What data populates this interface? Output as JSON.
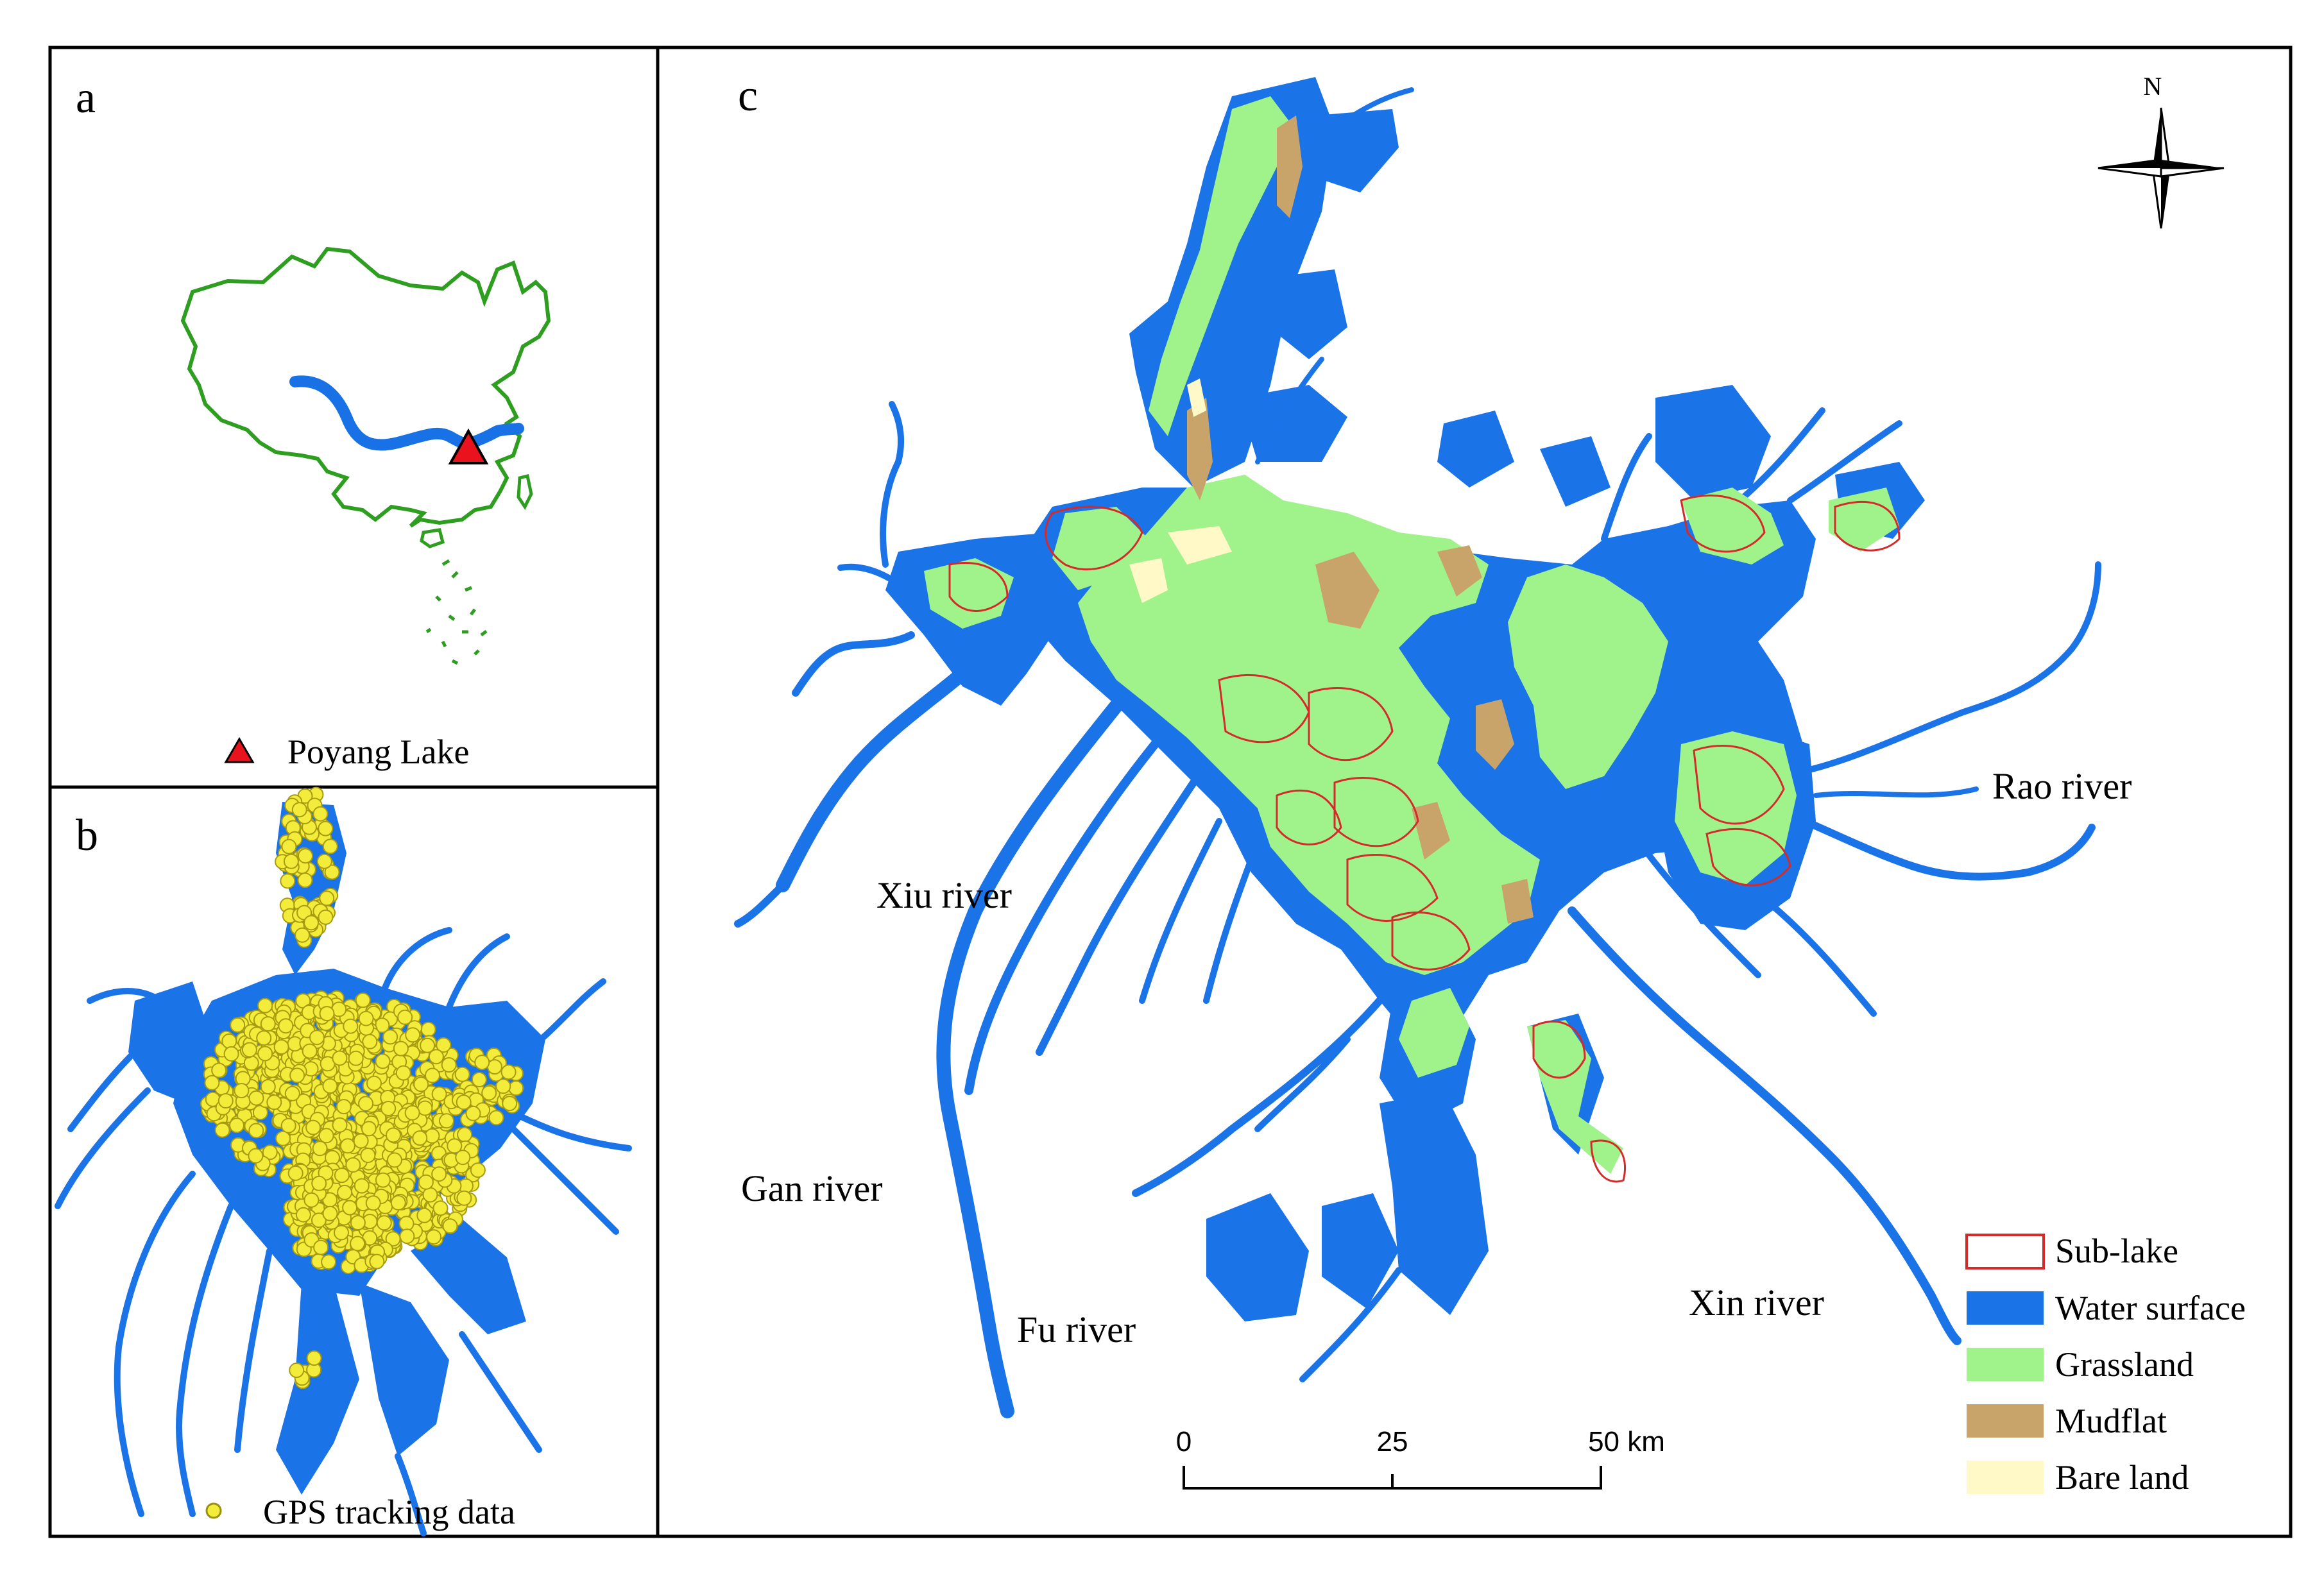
{
  "panels": {
    "a": {
      "letter": "a",
      "legend_label": "Poyang Lake",
      "marker_color": "#e8131d",
      "outline_color": "#2e9e20",
      "river_color": "#1872e6"
    },
    "b": {
      "letter": "b",
      "legend_label": "GPS tracking data",
      "point_color": "#f4ec3a"
    },
    "c": {
      "letter": "c",
      "north_label": "N",
      "river_labels": {
        "xiu": "Xiu river",
        "rao": "Rao river",
        "gan": "Gan river",
        "fu": "Fu river",
        "xin": "Xin river"
      },
      "scale_bar": {
        "ticks": [
          "0",
          "25",
          "50 km"
        ]
      },
      "legend": [
        {
          "label": "Sub-lake",
          "type": "outline",
          "color": "#d42a2a"
        },
        {
          "label": "Water surface",
          "type": "fill",
          "color": "#1b73e8"
        },
        {
          "label": "Grassland",
          "type": "fill",
          "color": "#a0f28a"
        },
        {
          "label": "Mudflat",
          "type": "fill",
          "color": "#c9a46a"
        },
        {
          "label": "Bare land",
          "type": "fill",
          "color": "#fff9c8"
        }
      ]
    }
  },
  "colors": {
    "water": "#1b73e8",
    "grass": "#a0f28a",
    "mud": "#c9a46a",
    "bare": "#fff9c8",
    "sublake": "#d42a2a",
    "gps": "#f4ec3a"
  }
}
